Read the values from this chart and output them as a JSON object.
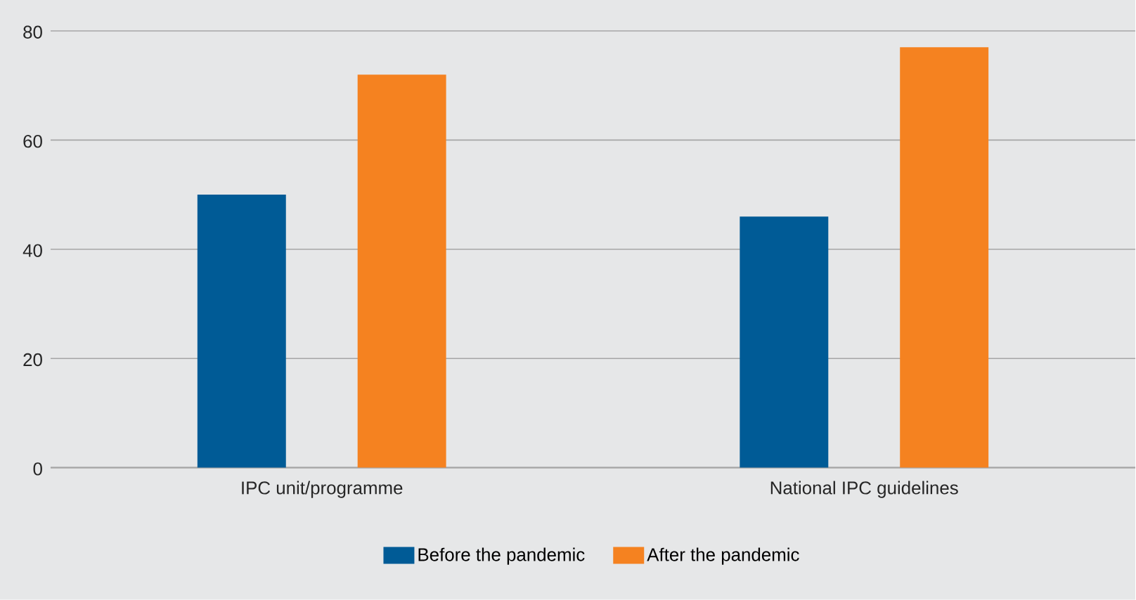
{
  "chart_data": {
    "type": "bar",
    "categories": [
      "IPC unit/programme",
      "National IPC guidelines"
    ],
    "series": [
      {
        "name": "Before the pandemic",
        "color": "#005b96",
        "values": [
          50,
          46
        ]
      },
      {
        "name": "After the pandemic",
        "color": "#f58220",
        "values": [
          72,
          77
        ]
      }
    ],
    "ylim": [
      0,
      80
    ],
    "yticks": [
      0,
      20,
      40,
      60,
      80
    ],
    "grid": "y",
    "legend": "bottom"
  }
}
